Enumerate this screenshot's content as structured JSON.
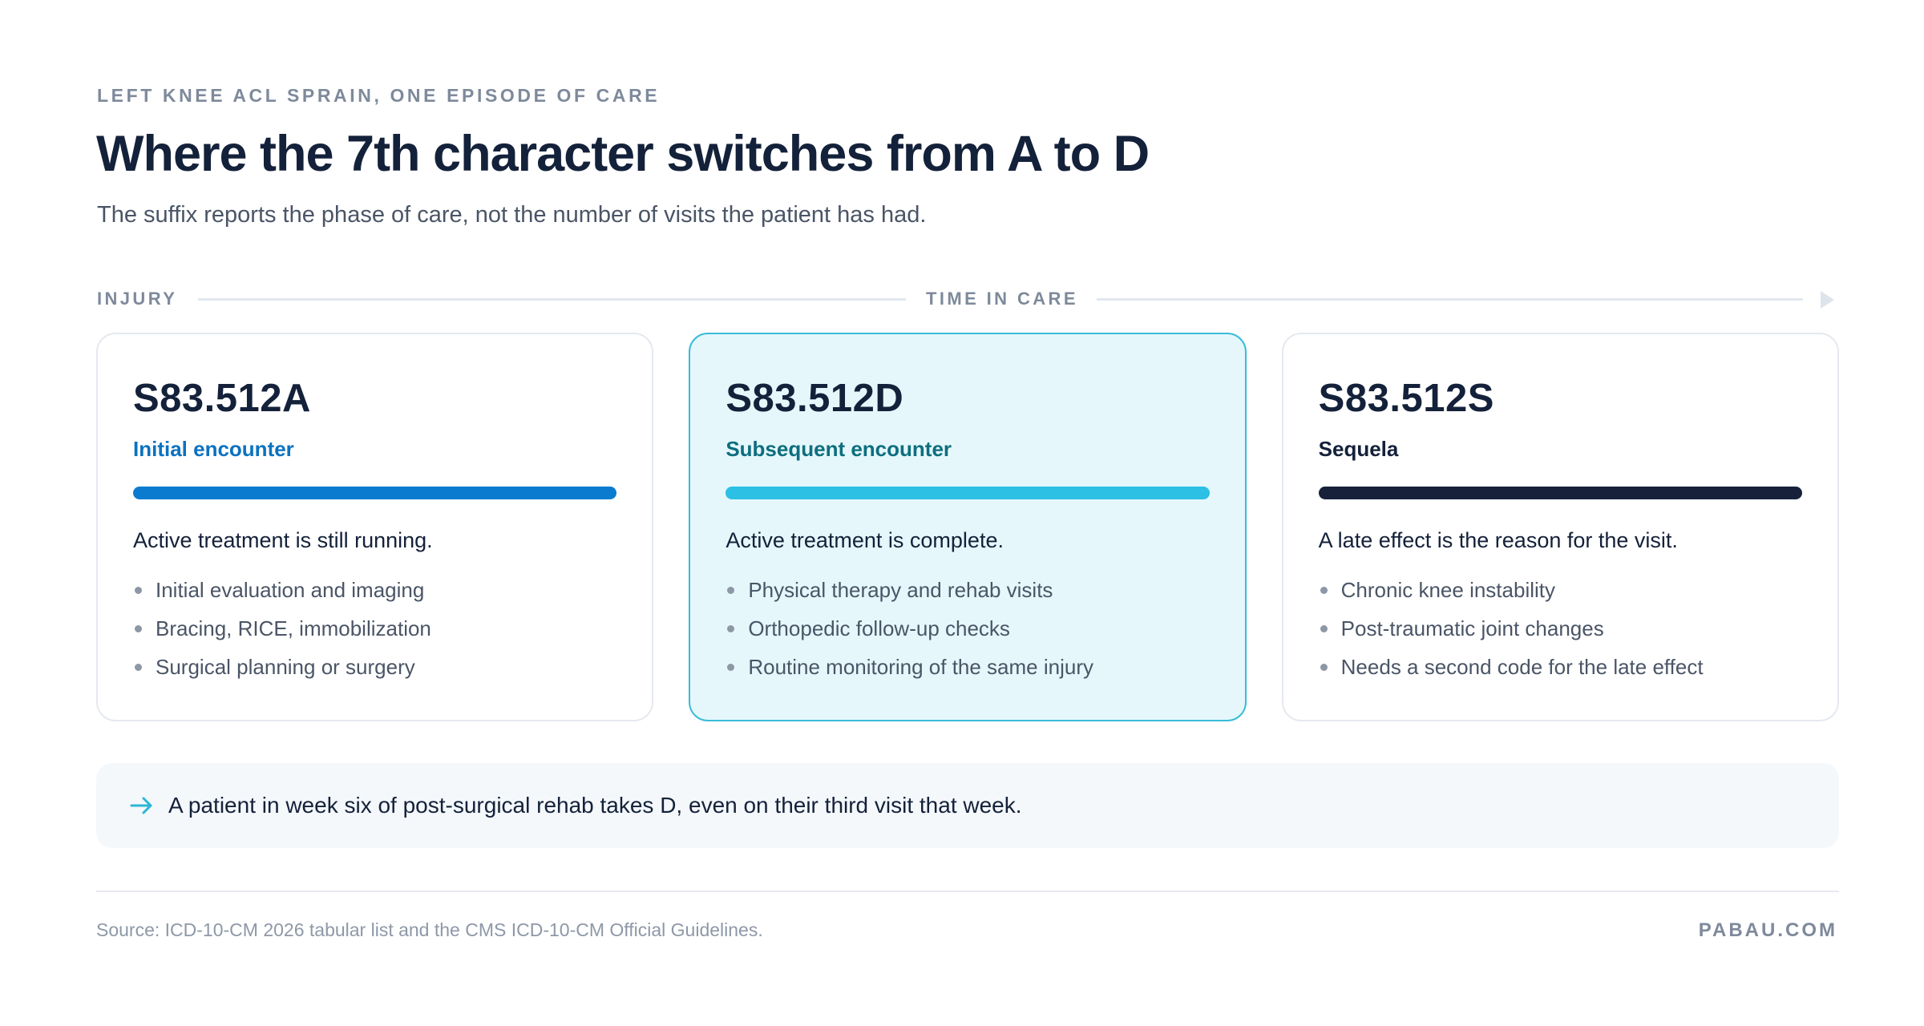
{
  "header": {
    "eyebrow": "LEFT KNEE ACL SPRAIN, ONE EPISODE OF CARE",
    "title": "Where the 7th character switches from A to D",
    "subtitle": "The suffix reports the phase of care, not the number of visits the patient has had."
  },
  "timeline": {
    "start_label": "INJURY",
    "mid_label": "TIME IN CARE"
  },
  "cards": [
    {
      "code": "S83.512A",
      "phase": "Initial encounter",
      "accent": "#0b7bd0",
      "phase_color": "#0b72c0",
      "summary": "Active treatment is still running.",
      "bullets": [
        "Initial evaluation and imaging",
        "Bracing, RICE, immobilization",
        "Surgical planning or surgery"
      ]
    },
    {
      "code": "S83.512D",
      "phase": "Subsequent encounter",
      "accent": "#2bc0e4",
      "phase_color": "#0d6e7e",
      "summary": "Active treatment is complete.",
      "bullets": [
        "Physical therapy and rehab visits",
        "Orthopedic follow-up checks",
        "Routine monitoring of the same injury"
      ]
    },
    {
      "code": "S83.512S",
      "phase": "Sequela",
      "accent": "#17223a",
      "phase_color": "#14213a",
      "summary": "A late effect is the reason for the visit.",
      "bullets": [
        "Chronic knee instability",
        "Post-traumatic joint changes",
        "Needs a second code for the late effect"
      ]
    }
  ],
  "note": {
    "icon": "arrow-right-icon",
    "accent": "#2bb6d6",
    "text": "A patient in week six of post-surgical rehab takes D, even on their third visit that week."
  },
  "footer": {
    "source": "Source: ICD-10-CM 2026 tabular list and the CMS ICD-10-CM Official Guidelines.",
    "brand": "PABAU.COM"
  }
}
